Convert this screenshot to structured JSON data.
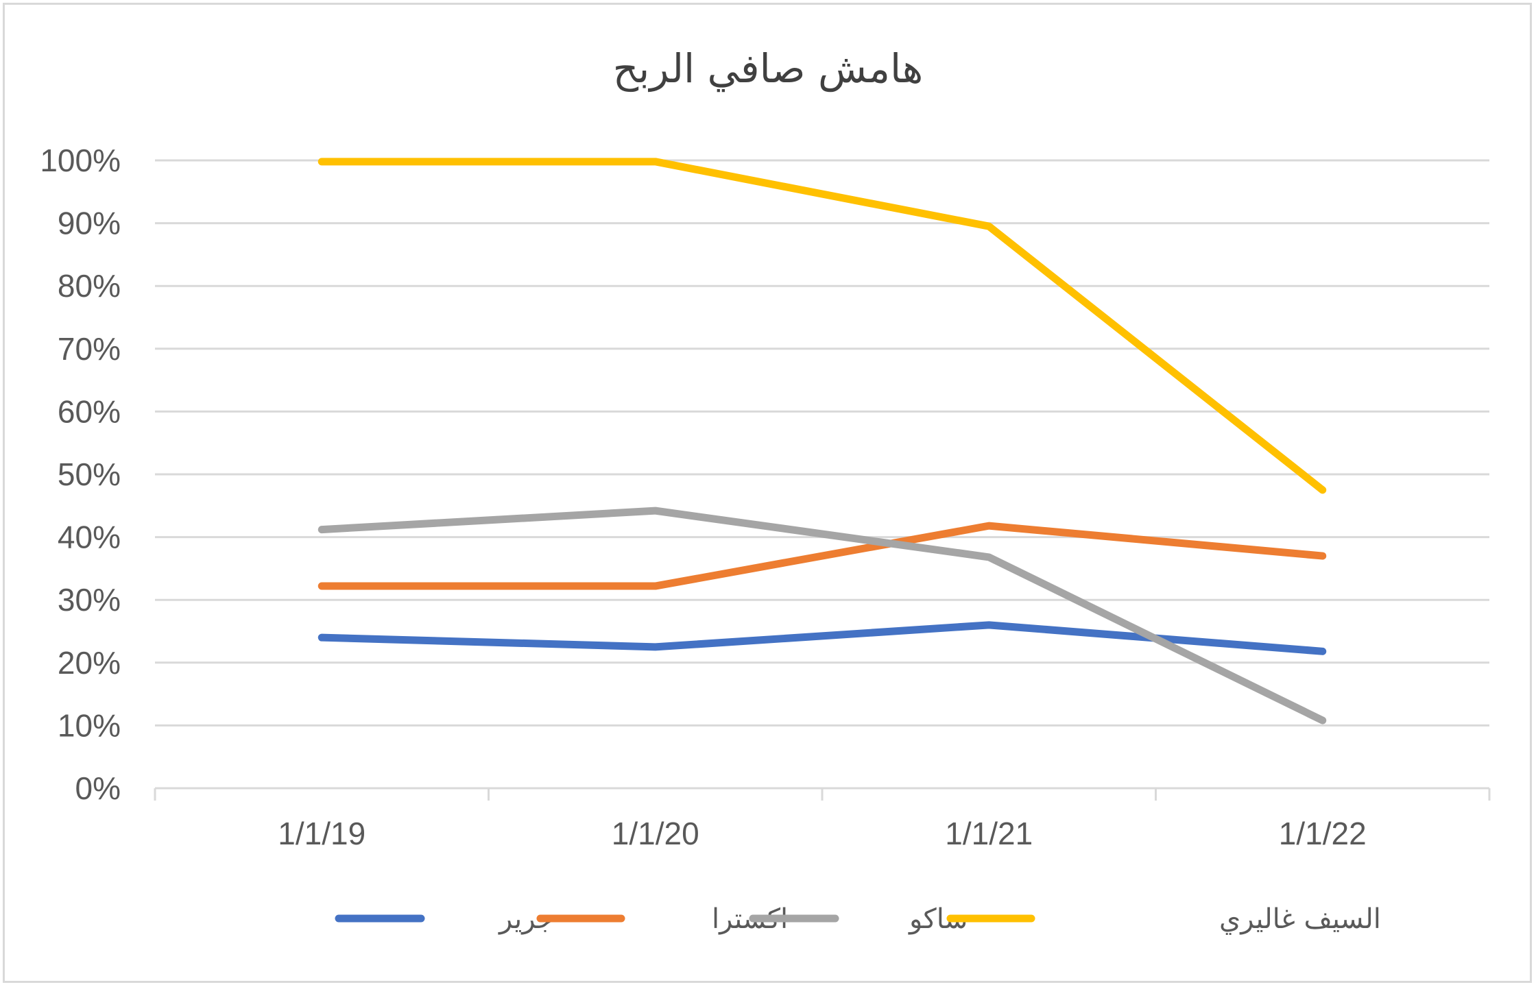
{
  "chart_data": {
    "type": "line",
    "title": "هامش صافي الربح",
    "xlabel": "",
    "ylabel": "",
    "categories": [
      "1/1/19",
      "1/1/20",
      "1/1/21",
      "1/1/22"
    ],
    "y_tick_labels": [
      "0%",
      "10%",
      "20%",
      "30%",
      "40%",
      "50%",
      "60%",
      "70%",
      "80%",
      "90%",
      "100%"
    ],
    "ylim": [
      0,
      100
    ],
    "y_unit": "%",
    "grid": true,
    "legend_position": "bottom",
    "series": [
      {
        "name": "جرير",
        "color": "#4472c4",
        "values": [
          24,
          22.5,
          26,
          21.8
        ]
      },
      {
        "name": "اكسترا",
        "color": "#ed7d31",
        "values": [
          32.2,
          32.2,
          41.8,
          37
        ]
      },
      {
        "name": "ساكو",
        "color": "#a5a5a5",
        "values": [
          41.2,
          44.2,
          36.8,
          10.8
        ]
      },
      {
        "name": "السيف غاليري",
        "color": "#ffc000",
        "values": [
          99.8,
          99.8,
          89.5,
          47.5
        ]
      }
    ]
  }
}
